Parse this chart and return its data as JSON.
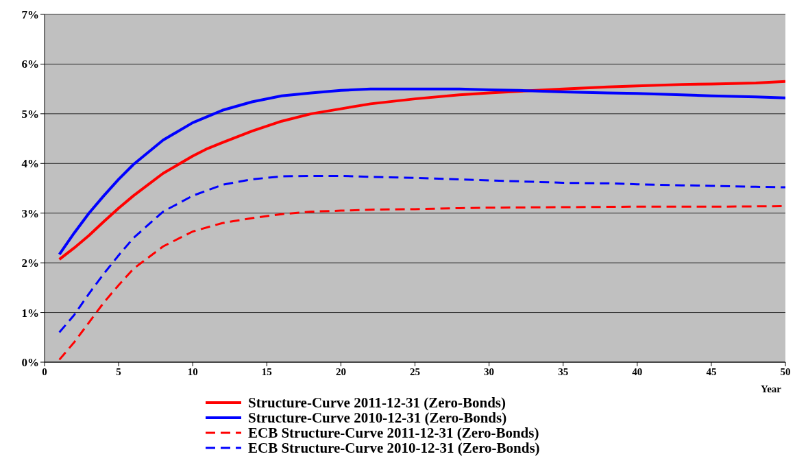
{
  "chart_data": {
    "type": "line",
    "xlabel": "Year",
    "xlim": [
      0,
      50
    ],
    "xticks": [
      0,
      5,
      10,
      15,
      20,
      25,
      30,
      35,
      40,
      45,
      50
    ],
    "ylim": [
      0,
      7
    ],
    "yticks": [
      {
        "value": 0,
        "label": "0%"
      },
      {
        "value": 1,
        "label": "1%"
      },
      {
        "value": 2,
        "label": "2%"
      },
      {
        "value": 3,
        "label": "3%"
      },
      {
        "value": 4,
        "label": "4%"
      },
      {
        "value": 5,
        "label": "5%"
      },
      {
        "value": 6,
        "label": "6%"
      },
      {
        "value": 7,
        "label": "7%"
      }
    ],
    "grid": "y",
    "legend": "bottom",
    "marker": "none",
    "series": [
      {
        "name": "Structure-Curve 2011-12-31 (Zero-Bonds)",
        "color": "#ff0000",
        "line_style": "solid",
        "x": [
          1,
          2,
          3,
          4,
          5,
          6,
          8,
          10,
          11,
          12,
          14,
          16,
          18,
          20,
          22,
          25,
          28,
          30,
          35,
          38,
          40,
          43,
          45,
          48,
          50
        ],
        "values": [
          2.07,
          2.3,
          2.55,
          2.83,
          3.1,
          3.35,
          3.8,
          4.15,
          4.3,
          4.42,
          4.65,
          4.85,
          5.0,
          5.1,
          5.2,
          5.3,
          5.38,
          5.42,
          5.5,
          5.54,
          5.56,
          5.59,
          5.6,
          5.62,
          5.65
        ]
      },
      {
        "name": "Structure-Curve 2010-12-31 (Zero-Bonds)",
        "color": "#0000ff",
        "line_style": "solid",
        "x": [
          1,
          2,
          3,
          4,
          5,
          6,
          8,
          10,
          12,
          14,
          16,
          18,
          20,
          22,
          25,
          28,
          30,
          32,
          35,
          38,
          40,
          43,
          45,
          48,
          50
        ],
        "values": [
          2.17,
          2.6,
          3.0,
          3.35,
          3.68,
          3.98,
          4.47,
          4.82,
          5.07,
          5.24,
          5.36,
          5.42,
          5.47,
          5.5,
          5.5,
          5.5,
          5.48,
          5.47,
          5.44,
          5.42,
          5.41,
          5.38,
          5.36,
          5.34,
          5.32
        ]
      },
      {
        "name": "ECB Structure-Curve 2011-12-31 (Zero-Bonds)",
        "color": "#ff0000",
        "line_style": "dashed",
        "x": [
          1,
          2,
          3,
          4,
          5,
          6,
          8,
          10,
          12,
          14,
          16,
          18,
          20,
          22,
          25,
          28,
          30,
          35,
          40,
          45,
          50
        ],
        "values": [
          0.05,
          0.4,
          0.8,
          1.2,
          1.55,
          1.88,
          2.33,
          2.63,
          2.8,
          2.9,
          2.98,
          3.03,
          3.05,
          3.07,
          3.08,
          3.1,
          3.11,
          3.12,
          3.13,
          3.13,
          3.14
        ]
      },
      {
        "name": "ECB Structure-Curve 2010-12-31 (Zero-Bonds)",
        "color": "#0000ff",
        "line_style": "dashed",
        "x": [
          1,
          2,
          3,
          4,
          5,
          6,
          8,
          10,
          12,
          14,
          16,
          18,
          20,
          22,
          25,
          28,
          30,
          33,
          35,
          38,
          40,
          43,
          45,
          48,
          50
        ],
        "values": [
          0.6,
          0.95,
          1.38,
          1.78,
          2.15,
          2.5,
          3.03,
          3.35,
          3.57,
          3.68,
          3.74,
          3.75,
          3.75,
          3.73,
          3.71,
          3.68,
          3.66,
          3.63,
          3.61,
          3.6,
          3.58,
          3.56,
          3.55,
          3.53,
          3.52
        ]
      }
    ]
  }
}
